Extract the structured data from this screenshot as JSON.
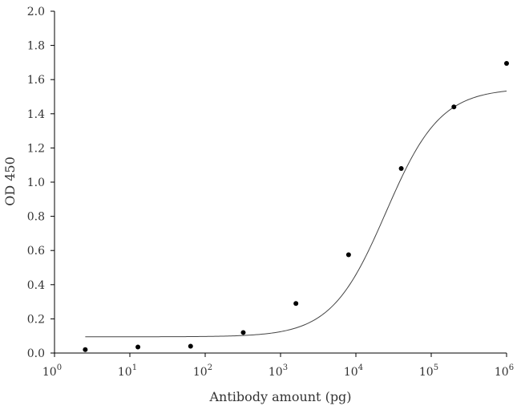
{
  "chart_data": {
    "type": "scatter",
    "title": "",
    "xlabel": "Antibody amount (pg)",
    "ylabel": "OD 450",
    "x_scale": "log",
    "xlim": [
      1,
      1000000
    ],
    "ylim": [
      0,
      2.0
    ],
    "x_ticks": [
      1,
      10,
      100,
      1000,
      10000,
      100000,
      1000000
    ],
    "x_tick_labels": [
      {
        "base": "10",
        "exp": "0"
      },
      {
        "base": "10",
        "exp": "1"
      },
      {
        "base": "10",
        "exp": "2"
      },
      {
        "base": "10",
        "exp": "3"
      },
      {
        "base": "10",
        "exp": "4"
      },
      {
        "base": "10",
        "exp": "5"
      },
      {
        "base": "10",
        "exp": "6"
      }
    ],
    "y_ticks": [
      0,
      0.2,
      0.4,
      0.6,
      0.8,
      1.0,
      1.2,
      1.4,
      1.6,
      1.8,
      2.0
    ],
    "y_tick_labels": [
      "0.0",
      "0.2",
      "0.4",
      "0.6",
      "0.8",
      "1.0",
      "1.2",
      "1.4",
      "1.6",
      "1.8",
      "2.0"
    ],
    "grid": false,
    "legend": "none",
    "series": [
      {
        "x": [
          2.56,
          12.8,
          64,
          320,
          1600,
          8000,
          40000,
          200000,
          1000000
        ],
        "y": [
          0.02,
          0.035,
          0.04,
          0.12,
          0.29,
          0.575,
          1.08,
          1.44,
          1.695
        ]
      }
    ],
    "fit": {
      "type": "4PL",
      "bottom": 0.095,
      "top": 1.55,
      "ec50": 25000,
      "hill": 1.2,
      "x_range": [
        2.56,
        1000000
      ]
    }
  }
}
